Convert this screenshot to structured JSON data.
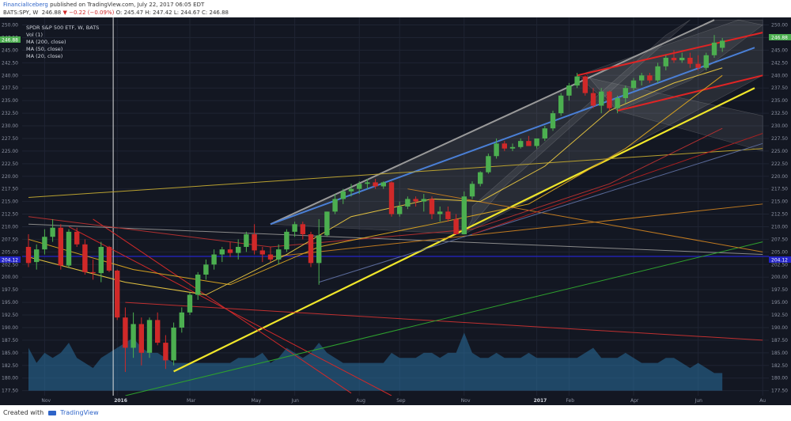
{
  "header": {
    "author": "FinancialIceberg",
    "published": "published on TradingView.com, July 22, 2017 06:05 EDT",
    "symbol": "BATS:SPY, W",
    "last": "246.88",
    "change_arrow": "▼",
    "change": "−0.22 (−0.09%)",
    "ohlc": "O: 245.47 H: 247.42 L: 244.67 C: 246.88"
  },
  "legend": {
    "title": "SPDR S&P 500 ETF, W, BATS",
    "items": [
      "Vol (1)",
      "MA (200, close)",
      "MA (50, close)",
      "MA (20, close)"
    ]
  },
  "price_badges": [
    {
      "text": "246.88",
      "color": "#4caf50"
    },
    {
      "text": "204.12",
      "color": "#2424c8"
    }
  ],
  "right_badges": [
    {
      "text": "246.88",
      "color": "#4caf50"
    },
    {
      "text": "204.12",
      "color": "#2424c8"
    }
  ],
  "footer": {
    "credit": "Created with",
    "brand": "TradingView"
  },
  "colors": {
    "background": "#131722",
    "up": "#4caf50",
    "down": "#d02929",
    "volume": "#2a6f9e",
    "trend_yellow": "#f0e62a",
    "channel_red": "#e02424",
    "channel_blue": "#4a7fd6",
    "channel_gray": "#9a9a9a",
    "ma_orange": "#e0a020"
  },
  "chart_data": {
    "type": "candlestick",
    "title": "SPDR S&P 500 ETF, W, BATS",
    "symbol": "SPY",
    "interval": "W",
    "y_axis_ticks": [
      177.5,
      180.0,
      182.5,
      185.0,
      187.5,
      190.0,
      192.5,
      195.0,
      197.5,
      200.0,
      202.5,
      205.0,
      207.5,
      210.0,
      212.5,
      215.0,
      217.5,
      220.0,
      222.5,
      225.0,
      227.5,
      230.0,
      232.5,
      235.0,
      237.5,
      240.0,
      242.5,
      245.0,
      247.5,
      250.0
    ],
    "y_axis_tick_labels": [
      "177.50",
      "180.00",
      "182.50",
      "185.00",
      "187.50",
      "190.00",
      "192.50",
      "195.00",
      "197.50",
      "200.00",
      "202.50",
      "205.00",
      "207.50",
      "210.00",
      "212.50",
      "215.00",
      "217.50",
      "220.00",
      "222.50",
      "225.00",
      "227.50",
      "230.00",
      "232.50",
      "235.00",
      "237.50",
      "240.00",
      "242.50",
      "245.00",
      "247.50",
      "250.00"
    ],
    "ylim": [
      176.5,
      251.5
    ],
    "x_axis_labels": [
      {
        "label": "Nov",
        "week": 2,
        "year": false
      },
      {
        "label": "2016",
        "week": 11,
        "year": true
      },
      {
        "label": "Mar",
        "week": 20,
        "year": false
      },
      {
        "label": "May",
        "week": 28,
        "year": false
      },
      {
        "label": "Jun",
        "week": 33,
        "year": false
      },
      {
        "label": "Aug",
        "week": 41,
        "year": false
      },
      {
        "label": "Sep",
        "week": 46,
        "year": false
      },
      {
        "label": "Nov",
        "week": 54,
        "year": false
      },
      {
        "label": "2017",
        "week": 63,
        "year": true
      },
      {
        "label": "Feb",
        "week": 67,
        "year": false
      },
      {
        "label": "Apr",
        "week": 75,
        "year": false
      },
      {
        "label": "Jun",
        "week": 83,
        "year": false
      },
      {
        "label": "Au",
        "week": 91,
        "year": false
      }
    ],
    "candles": [
      [
        206.0,
        208.5,
        202.0,
        202.8
      ],
      [
        203.0,
        206.5,
        201.5,
        205.5
      ],
      [
        205.5,
        209.5,
        204.5,
        208.0
      ],
      [
        208.0,
        211.5,
        207.0,
        209.8
      ],
      [
        209.8,
        210.5,
        201.5,
        202.3
      ],
      [
        202.3,
        209.5,
        201.8,
        209.0
      ],
      [
        209.0,
        209.8,
        206.0,
        206.5
      ],
      [
        206.5,
        207.5,
        200.5,
        201.0
      ],
      [
        201.0,
        203.5,
        199.5,
        200.8
      ],
      [
        200.8,
        207.0,
        199.0,
        206.0
      ],
      [
        206.0,
        206.2,
        201.0,
        201.3
      ],
      [
        201.3,
        201.5,
        191.5,
        192.0
      ],
      [
        192.0,
        194.0,
        181.2,
        186.0
      ],
      [
        186.0,
        193.0,
        184.0,
        190.7
      ],
      [
        190.7,
        192.0,
        182.5,
        185.0
      ],
      [
        185.0,
        192.0,
        184.0,
        191.5
      ],
      [
        191.5,
        193.0,
        186.5,
        187.0
      ],
      [
        187.0,
        188.5,
        181.8,
        183.5
      ],
      [
        183.5,
        191.0,
        182.5,
        190.0
      ],
      [
        190.0,
        194.0,
        189.0,
        193.0
      ],
      [
        193.0,
        197.0,
        192.5,
        196.5
      ],
      [
        196.5,
        201.0,
        195.5,
        200.5
      ],
      [
        200.5,
        203.5,
        199.5,
        202.5
      ],
      [
        202.5,
        205.5,
        201.5,
        204.5
      ],
      [
        204.5,
        206.0,
        203.0,
        205.5
      ],
      [
        205.5,
        207.0,
        204.0,
        204.8
      ],
      [
        204.8,
        207.5,
        203.5,
        206.0
      ],
      [
        206.0,
        209.0,
        205.0,
        208.5
      ],
      [
        208.5,
        210.5,
        204.5,
        205.3
      ],
      [
        205.3,
        206.0,
        203.0,
        204.5
      ],
      [
        204.5,
        206.0,
        203.0,
        203.5
      ],
      [
        203.5,
        206.5,
        202.5,
        205.5
      ],
      [
        205.5,
        209.5,
        205.0,
        209.0
      ],
      [
        209.0,
        211.0,
        208.0,
        210.5
      ],
      [
        210.5,
        211.0,
        207.5,
        208.5
      ],
      [
        208.5,
        209.0,
        202.0,
        202.8
      ],
      [
        202.8,
        211.5,
        198.5,
        208.3
      ],
      [
        208.3,
        213.0,
        208.0,
        213.0
      ],
      [
        213.0,
        216.5,
        212.5,
        215.5
      ],
      [
        215.5,
        217.5,
        214.5,
        217.0
      ],
      [
        217.0,
        218.5,
        216.0,
        217.5
      ],
      [
        217.5,
        219.0,
        216.5,
        218.5
      ],
      [
        218.5,
        219.5,
        217.5,
        218.8
      ],
      [
        218.8,
        219.5,
        217.5,
        218.0
      ],
      [
        218.0,
        219.0,
        217.5,
        218.8
      ],
      [
        218.8,
        219.0,
        212.0,
        212.5
      ],
      [
        212.5,
        215.0,
        212.0,
        214.0
      ],
      [
        214.0,
        216.0,
        213.5,
        215.5
      ],
      [
        215.5,
        216.0,
        214.0,
        215.0
      ],
      [
        215.0,
        216.5,
        213.0,
        215.5
      ],
      [
        215.5,
        216.0,
        211.5,
        212.5
      ],
      [
        212.5,
        214.0,
        211.0,
        213.0
      ],
      [
        213.0,
        214.0,
        211.0,
        211.5
      ],
      [
        211.5,
        212.5,
        208.5,
        208.5
      ],
      [
        208.5,
        217.0,
        208.5,
        216.0
      ],
      [
        216.0,
        219.0,
        215.5,
        218.5
      ],
      [
        218.5,
        221.0,
        218.0,
        220.8
      ],
      [
        220.8,
        224.5,
        220.5,
        224.0
      ],
      [
        224.0,
        227.5,
        223.5,
        226.5
      ],
      [
        226.5,
        227.0,
        225.0,
        225.5
      ],
      [
        225.5,
        226.5,
        225.0,
        225.8
      ],
      [
        225.8,
        227.5,
        225.5,
        227.0
      ],
      [
        227.0,
        228.0,
        226.0,
        226.0
      ],
      [
        226.0,
        227.5,
        225.5,
        227.5
      ],
      [
        227.5,
        230.0,
        227.0,
        229.5
      ],
      [
        229.5,
        233.0,
        229.0,
        232.5
      ],
      [
        232.5,
        236.5,
        232.0,
        236.0
      ],
      [
        236.0,
        238.5,
        235.0,
        238.0
      ],
      [
        238.0,
        240.5,
        237.5,
        239.8
      ],
      [
        239.8,
        240.0,
        236.0,
        236.5
      ],
      [
        236.5,
        237.5,
        233.5,
        234.0
      ],
      [
        234.0,
        237.5,
        232.5,
        236.8
      ],
      [
        236.8,
        237.0,
        233.0,
        233.5
      ],
      [
        233.5,
        236.0,
        232.5,
        235.5
      ],
      [
        235.5,
        238.0,
        234.5,
        237.5
      ],
      [
        237.5,
        239.5,
        237.0,
        239.0
      ],
      [
        239.0,
        240.5,
        238.0,
        240.0
      ],
      [
        240.0,
        240.5,
        238.5,
        239.0
      ],
      [
        239.0,
        242.5,
        238.5,
        241.8
      ],
      [
        241.8,
        244.0,
        241.0,
        243.5
      ],
      [
        243.5,
        245.0,
        242.5,
        243.0
      ],
      [
        243.0,
        244.5,
        242.5,
        243.5
      ],
      [
        243.5,
        244.5,
        241.5,
        242.3
      ],
      [
        242.3,
        244.0,
        241.0,
        241.5
      ],
      [
        241.5,
        244.5,
        241.0,
        244.0
      ],
      [
        244.0,
        248.0,
        243.5,
        246.5
      ],
      [
        245.47,
        247.42,
        244.67,
        246.88
      ]
    ],
    "volume_baseline": 177.5,
    "volume_levels": [
      186,
      183,
      185,
      184,
      185,
      187,
      184,
      183,
      182,
      184,
      185,
      186,
      187,
      188,
      186,
      185,
      185,
      184,
      183,
      183,
      183,
      183,
      183,
      183,
      183,
      183,
      184,
      184,
      184,
      185,
      183,
      184,
      186,
      185,
      184,
      185,
      187,
      185,
      184,
      183,
      183,
      183,
      183,
      183,
      183,
      185,
      184,
      184,
      184,
      185,
      185,
      184,
      185,
      185,
      189,
      185,
      184,
      184,
      185,
      184,
      184,
      184,
      185,
      184,
      184,
      184,
      184,
      184,
      184,
      185,
      186,
      184,
      184,
      184,
      185,
      184,
      183,
      183,
      183,
      184,
      184,
      183,
      182,
      183,
      182,
      181,
      181
    ],
    "moving_averages": [
      {
        "name": "MA (200, close)",
        "color": "#b03030",
        "points": [
          [
            0,
            212.0
          ],
          [
            30,
            206.0
          ],
          [
            55,
            209.5
          ],
          [
            72,
            218.5
          ],
          [
            86,
            229.5
          ]
        ]
      },
      {
        "name": "MA (50, close)",
        "color": "#d4a020",
        "points": [
          [
            0,
            207.5
          ],
          [
            13,
            201.5
          ],
          [
            25,
            198.5
          ],
          [
            36,
            206.0
          ],
          [
            50,
            210.5
          ],
          [
            62,
            214.5
          ],
          [
            74,
            225.5
          ],
          [
            86,
            240.0
          ]
        ]
      },
      {
        "name": "MA (20, close)",
        "color": "#e0c040",
        "points": [
          [
            0,
            204.0
          ],
          [
            12,
            199.0
          ],
          [
            22,
            196.5
          ],
          [
            32,
            204.5
          ],
          [
            40,
            212.0
          ],
          [
            50,
            215.5
          ],
          [
            56,
            215.0
          ],
          [
            64,
            222.0
          ],
          [
            72,
            233.0
          ],
          [
            80,
            238.5
          ],
          [
            86,
            241.5
          ]
        ]
      }
    ],
    "trend_lines": [
      {
        "name": "gray-channel-top",
        "color": "#9a9a9a",
        "width": 2,
        "from": [
          30,
          210.5
        ],
        "to": [
          85,
          251.0
        ]
      },
      {
        "name": "blue-channel-mid",
        "color": "#4a7fd6",
        "width": 2,
        "from": [
          30,
          210.5
        ],
        "to": [
          90,
          245.5
        ]
      },
      {
        "name": "yellow-support",
        "color": "#f0e62a",
        "width": 2.2,
        "from": [
          18,
          181.3
        ],
        "to": [
          90,
          237.5
        ]
      },
      {
        "name": "red-channel-top",
        "color": "#e02424",
        "width": 2,
        "from": [
          68,
          240.0
        ],
        "to": [
          91,
          248.5
        ]
      },
      {
        "name": "red-channel-bottom",
        "color": "#e02424",
        "width": 2,
        "from": [
          73,
          233.0
        ],
        "to": [
          91,
          240.0
        ]
      },
      {
        "name": "red-fan-1",
        "color": "#d02929",
        "width": 1,
        "from": [
          8,
          211.5
        ],
        "to": [
          40,
          177.0
        ]
      },
      {
        "name": "red-fan-2",
        "color": "#d02929",
        "width": 1,
        "from": [
          5,
          210.0
        ],
        "to": [
          45,
          176.5
        ]
      },
      {
        "name": "gray-fan",
        "color": "#8a8a8a",
        "width": 1,
        "from": [
          0,
          210.5
        ],
        "to": [
          91,
          204.5
        ]
      },
      {
        "name": "red-long",
        "color": "#c03030",
        "width": 1,
        "from": [
          12,
          195.0
        ],
        "to": [
          91,
          187.5
        ]
      },
      {
        "name": "green-long",
        "color": "#2ea02e",
        "width": 1,
        "from": [
          12,
          176.5
        ],
        "to": [
          91,
          207.0
        ]
      },
      {
        "name": "olive-long",
        "color": "#b8a030",
        "width": 1,
        "from": [
          0,
          215.8
        ],
        "to": [
          91,
          225.5
        ]
      },
      {
        "name": "orange-long",
        "color": "#c07a20",
        "width": 1,
        "from": [
          30,
          204.0
        ],
        "to": [
          91,
          214.5
        ]
      },
      {
        "name": "orange-fan",
        "color": "#c07a20",
        "width": 1,
        "from": [
          47,
          217.5
        ],
        "to": [
          91,
          205.0
        ]
      },
      {
        "name": "slate-fan",
        "color": "#5a6a9a",
        "width": 1,
        "from": [
          36,
          199.0
        ],
        "to": [
          91,
          226.5
        ]
      },
      {
        "name": "red-fan-3",
        "color": "#b02020",
        "width": 1,
        "from": [
          55,
          208.5
        ],
        "to": [
          91,
          228.5
        ]
      }
    ],
    "shaded_channels": [
      {
        "name": "gray-channel",
        "color": "rgba(200,200,200,0.12)",
        "points": [
          [
            30,
            210.5
          ],
          [
            85,
            251.0
          ],
          [
            91,
            251.0
          ],
          [
            91,
            240.0
          ],
          [
            54,
            208.5
          ]
        ]
      },
      {
        "name": "parallel-band-1",
        "color": "rgba(200,200,200,0.10)",
        "points": [
          [
            55,
            214.0
          ],
          [
            79,
            248.0
          ],
          [
            82,
            251.0
          ],
          [
            59,
            218.0
          ],
          [
            54,
            208.5
          ],
          [
            55,
            211.5
          ]
        ]
      },
      {
        "name": "parallel-band-2",
        "color": "rgba(200,200,200,0.10)",
        "points": [
          [
            69,
            240.5
          ],
          [
            88,
            251.0
          ],
          [
            91,
            250.0
          ],
          [
            82,
            239.0
          ],
          [
            73,
            233.0
          ]
        ]
      },
      {
        "name": "descending-band",
        "color": "rgba(200,200,200,0.10)",
        "points": [
          [
            68,
            240.0
          ],
          [
            91,
            232.0
          ],
          [
            91,
            225.0
          ],
          [
            73,
            233.0
          ]
        ]
      }
    ],
    "horizontal_lines": [
      {
        "value": 204.12,
        "color": "#2424c8"
      }
    ],
    "vertical_markers": [
      {
        "week": 10.5,
        "color": "#e0e0e0"
      }
    ]
  }
}
